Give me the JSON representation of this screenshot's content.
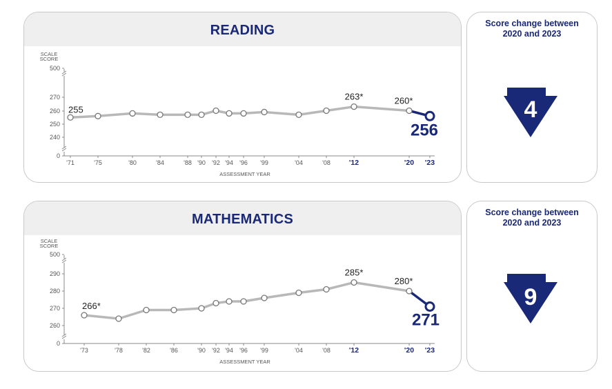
{
  "chart_data": [
    {
      "type": "line",
      "title": "READING",
      "ylabel": "SCALE\nSCORE",
      "xlabel": "ASSESSMENT YEAR",
      "yticks": [
        "0",
        "240",
        "250",
        "260",
        "270",
        "500"
      ],
      "ylim_broken": [
        240,
        270
      ],
      "x_tick_labels": [
        "'71",
        "'75",
        "'80",
        "'84",
        "'88",
        "'90",
        "'92",
        "'94",
        "'96",
        "'99",
        "'04",
        "'08",
        "'12",
        "'20",
        "'23"
      ],
      "bold_x_ticks": [
        "'12",
        "'20",
        "'23"
      ],
      "series": [
        {
          "x": [
            1971,
            1975,
            1980,
            1984,
            1988,
            1990,
            1992,
            1994,
            1996,
            1999,
            2004,
            2008,
            2012,
            2020
          ],
          "values": [
            255,
            256,
            258,
            257,
            257,
            257,
            260,
            258,
            258,
            259,
            257,
            260,
            263,
            260
          ]
        },
        {
          "x": [
            2020,
            2023
          ],
          "values": [
            260,
            256
          ]
        }
      ],
      "data_labels": [
        {
          "year": 1971,
          "text": "255"
        },
        {
          "year": 2012,
          "text": "263*"
        },
        {
          "year": 2020,
          "text": "260*"
        },
        {
          "year": 2023,
          "text": "256",
          "emphasis": true
        }
      ],
      "score_change": {
        "title": "Score change between\n2020 and 2023",
        "value": "4",
        "direction": "down"
      }
    },
    {
      "type": "line",
      "title": "MATHEMATICS",
      "ylabel": "SCALE\nSCORE",
      "xlabel": "ASSESSMENT YEAR",
      "yticks": [
        "0",
        "260",
        "270",
        "280",
        "290",
        "500"
      ],
      "ylim_broken": [
        260,
        290
      ],
      "x_tick_labels": [
        "'73",
        "'78",
        "'82",
        "'86",
        "'90",
        "'92",
        "'94",
        "'96",
        "'99",
        "'04",
        "'08",
        "'12",
        "'20",
        "'23"
      ],
      "bold_x_ticks": [
        "'12",
        "'20",
        "'23"
      ],
      "series": [
        {
          "x": [
            1973,
            1978,
            1982,
            1986,
            1990,
            1992,
            1994,
            1996,
            1999,
            2004,
            2008,
            2012,
            2020
          ],
          "values": [
            266,
            264,
            269,
            269,
            270,
            273,
            274,
            274,
            276,
            279,
            281,
            285,
            280
          ]
        },
        {
          "x": [
            2020,
            2023
          ],
          "values": [
            280,
            271
          ]
        }
      ],
      "data_labels": [
        {
          "year": 1973,
          "text": "266*"
        },
        {
          "year": 2012,
          "text": "285*"
        },
        {
          "year": 2020,
          "text": "280*"
        },
        {
          "year": 2023,
          "text": "271",
          "emphasis": true
        }
      ],
      "score_change": {
        "title": "Score change between\n2020 and 2023",
        "value": "9",
        "direction": "down"
      }
    }
  ],
  "colors": {
    "trend_line": "#b8b8b8",
    "recent_line": "#1a2878",
    "accent": "#1a2878",
    "panel_header": "#efefef"
  }
}
